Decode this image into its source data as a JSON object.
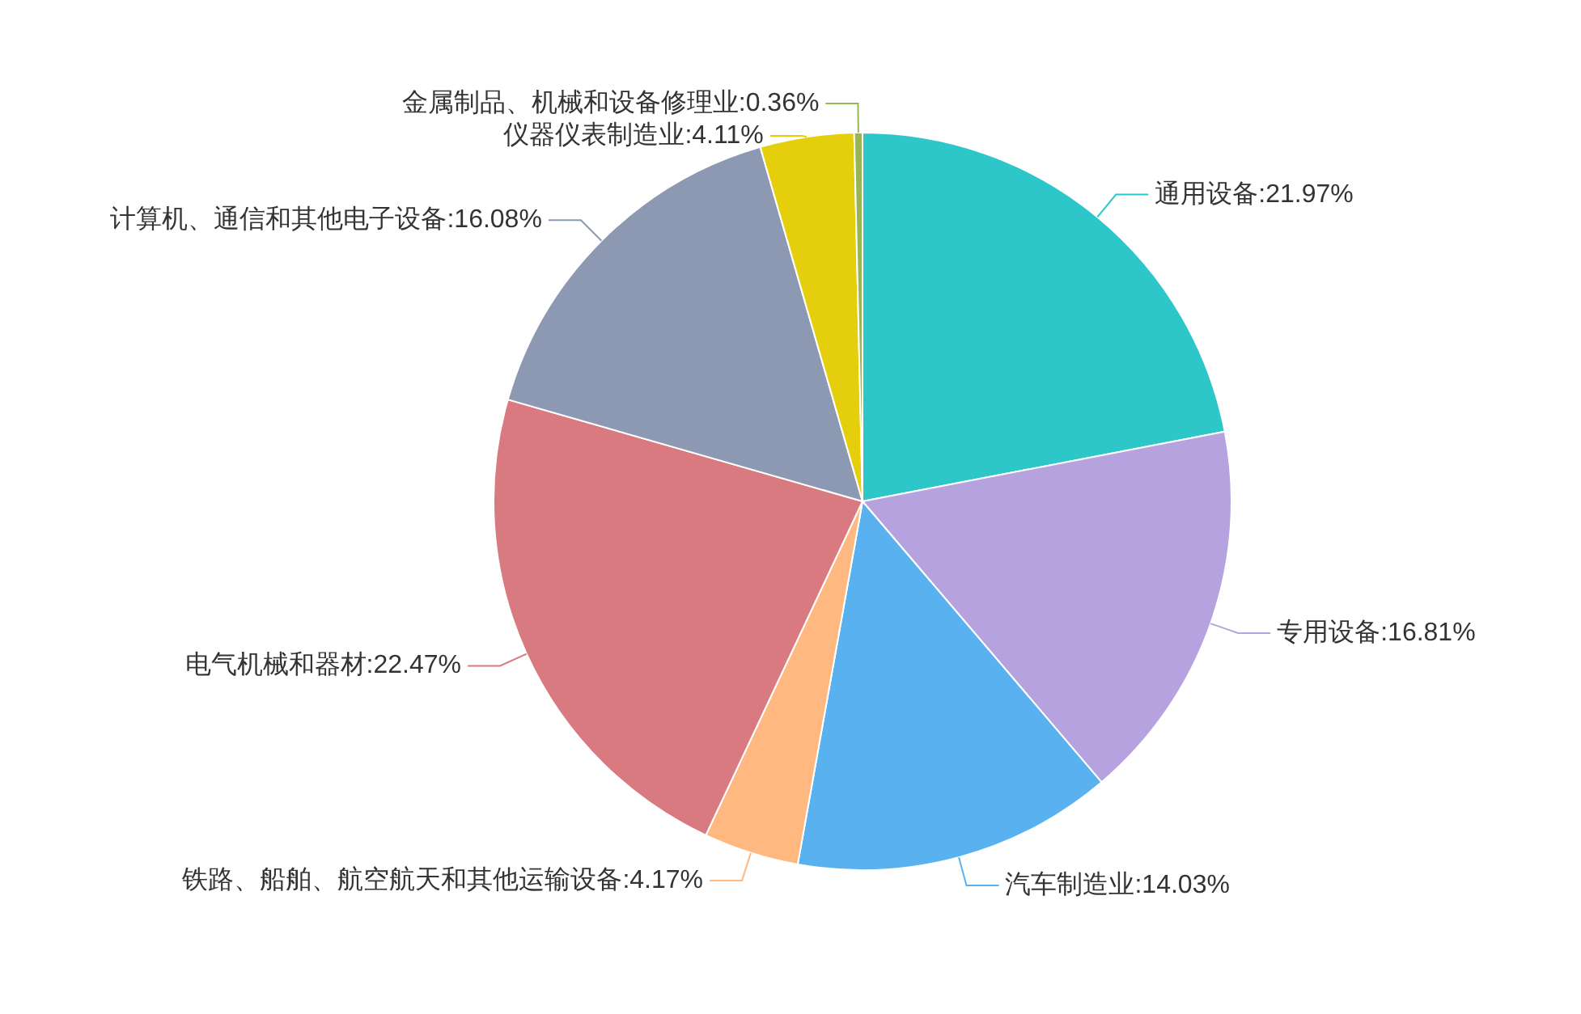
{
  "chart_data": {
    "type": "pie",
    "categories": [
      "通用设备",
      "专用设备",
      "汽车制造业",
      "铁路、船舶、航空航天和其他运输设备",
      "电气机械和器材",
      "计算机、通信和其他电子设备",
      "仪器仪表制造业",
      "金属制品、机械和设备修理业"
    ],
    "values": [
      21.97,
      16.81,
      14.03,
      4.17,
      22.47,
      16.08,
      4.11,
      0.36
    ],
    "value_labels": [
      "21.97%",
      "16.81%",
      "14.03%",
      "4.17%",
      "22.47%",
      "16.08%",
      "4.11%",
      "0.36%"
    ],
    "colors": [
      "#2ec7c9",
      "#b6a2de",
      "#5ab1ef",
      "#ffb980",
      "#d87a80",
      "#8d98b3",
      "#e5cf0d",
      "#97b552"
    ]
  }
}
